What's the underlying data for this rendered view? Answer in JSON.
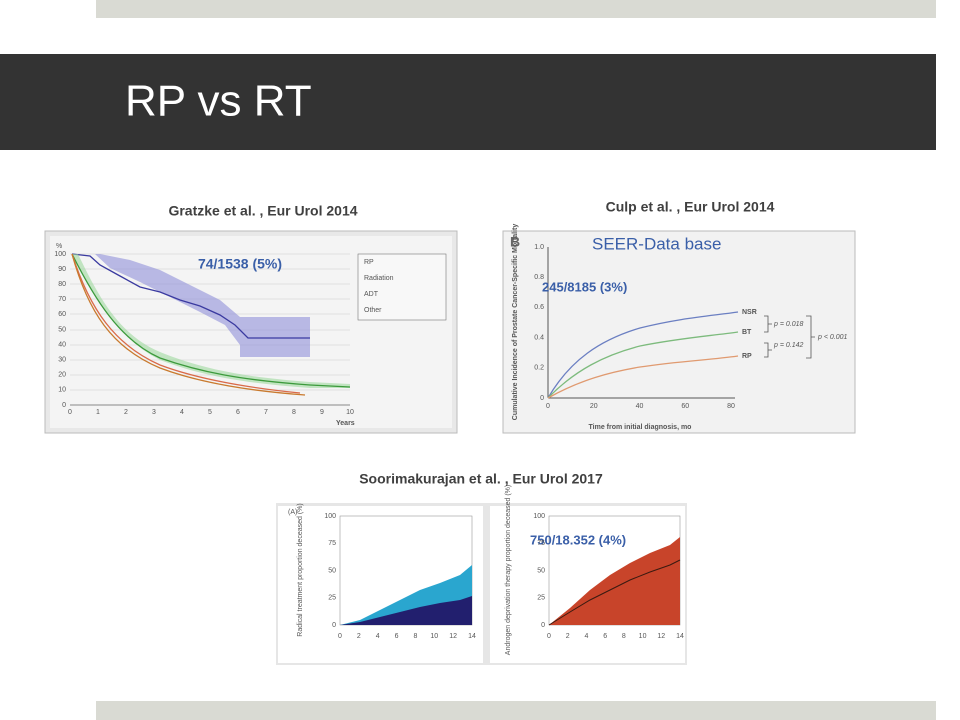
{
  "title": "RP vs RT",
  "figures": [
    {
      "caption": "Gratzke et al. , Eur Urol 2014",
      "annotation": "74/1538 (5%)",
      "y_label": "%",
      "x_label": "Years",
      "xticks": [
        "0",
        "1",
        "2",
        "3",
        "4",
        "5",
        "6",
        "7",
        "8",
        "9",
        "10"
      ],
      "yticks": [
        "0",
        "10",
        "20",
        "30",
        "40",
        "50",
        "60",
        "70",
        "80",
        "90",
        "100"
      ],
      "legend": [
        "RP",
        "Radiation",
        "ADT",
        "Other"
      ]
    },
    {
      "caption": "Culp et al. , Eur Urol 2014",
      "panel": "B",
      "heading": "SEER-Data base",
      "annotation": "245/8185 (3%)",
      "y_label": "Cumulative Incidence of Prostate Cancer-Specific Mortality",
      "x_label": "Time from initial diagnosis, mo",
      "xticks": [
        "0",
        "20",
        "40",
        "60",
        "80"
      ],
      "yticks": [
        "0",
        "0.2",
        "0.4",
        "0.6",
        "0.8",
        "1.0"
      ],
      "curves": [
        "NSR",
        "BT",
        "RP"
      ],
      "p_values": [
        "p = 0.018",
        "p = 0.142",
        "p < 0.001"
      ]
    },
    {
      "caption": "Soorimakurajan et al. , Eur Urol 2017",
      "annotation": "750/18.352 (4%)",
      "panels": [
        {
          "label": "(A)",
          "y_label": "Radical treatment proportion deceased (%)",
          "xticks": [
            "0",
            "2",
            "4",
            "6",
            "8",
            "10",
            "12",
            "14"
          ],
          "yticks": [
            "0",
            "25",
            "50",
            "75",
            "100"
          ]
        },
        {
          "y_label": "Androgen deprivation therapy proportion deceased (%)",
          "xticks": [
            "0",
            "2",
            "4",
            "6",
            "8",
            "10",
            "12",
            "14"
          ],
          "yticks": [
            "0",
            "25",
            "50",
            "75",
            "100"
          ]
        }
      ]
    }
  ]
}
